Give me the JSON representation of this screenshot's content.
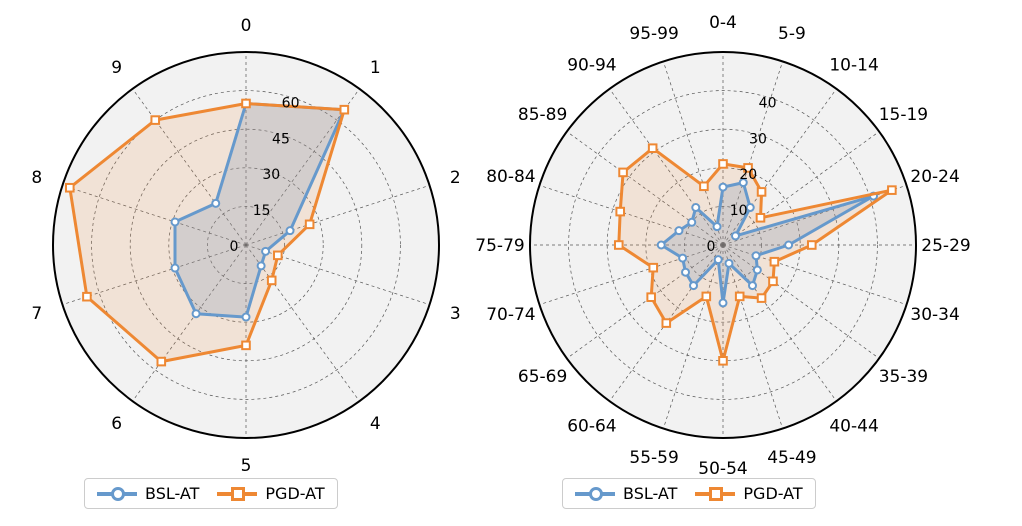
{
  "colors": {
    "bsl": "#6699cc",
    "pgd": "#ee8833",
    "background": "#f2f2f2"
  },
  "chart_data": [
    {
      "type": "radar",
      "categories": [
        "0",
        "1",
        "2",
        "3",
        "4",
        "5",
        "6",
        "7",
        "8",
        "9"
      ],
      "ticks": [
        "0",
        "15",
        "30",
        "45",
        "60"
      ],
      "rmax": 75,
      "grid": true,
      "legend_position": "bottom",
      "series": [
        {
          "name": "BSL-AT",
          "values": [
            55,
            65,
            18,
            8,
            10,
            28,
            33,
            29,
            29,
            20
          ]
        },
        {
          "name": "PGD-AT",
          "values": [
            55,
            65,
            26,
            13,
            17,
            39,
            56,
            65,
            72,
            60
          ]
        }
      ]
    },
    {
      "type": "radar",
      "categories": [
        "0-4",
        "5-9",
        "10-14",
        "15-19",
        "20-24",
        "25-29",
        "30-34",
        "35-39",
        "40-44",
        "45-49",
        "50-54",
        "55-59",
        "60-64",
        "65-69",
        "70-74",
        "75-79",
        "80-84",
        "85-89",
        "90-94",
        "95-99"
      ],
      "ticks": [
        "0",
        "10",
        "20",
        "30",
        "40"
      ],
      "rmax": 50,
      "grid": true,
      "legend_position": "bottom",
      "series": [
        {
          "name": "BSL-AT",
          "values": [
            15,
            17,
            12,
            4,
            41,
            17,
            9,
            11,
            13,
            5,
            15,
            4,
            13,
            12,
            11,
            16,
            12,
            10,
            12,
            5
          ]
        },
        {
          "name": "PGD-AT",
          "values": [
            21,
            21,
            17,
            12,
            46,
            23,
            14,
            16,
            17,
            14,
            30,
            14,
            25,
            23,
            19,
            27,
            28,
            32,
            31,
            16
          ]
        }
      ]
    }
  ],
  "legends": [
    {
      "items": [
        {
          "label": "BSL-AT"
        },
        {
          "label": "PGD-AT"
        }
      ]
    },
    {
      "items": [
        {
          "label": "BSL-AT"
        },
        {
          "label": "PGD-AT"
        }
      ]
    }
  ]
}
